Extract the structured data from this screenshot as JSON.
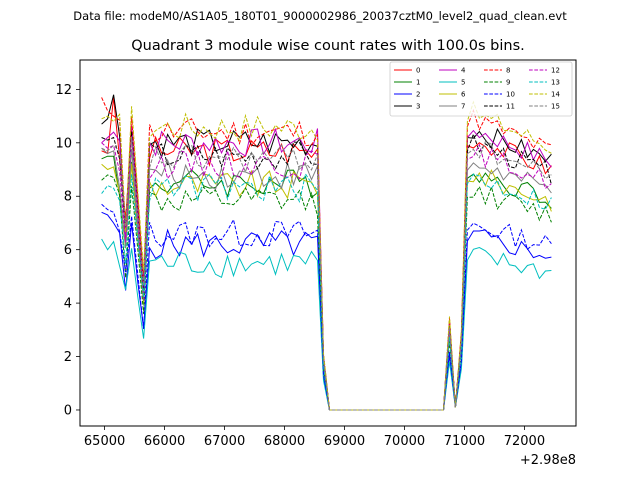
{
  "suptitle": "Data file: modeM0/AS1A05_180T01_9000002986_20037cztM0_level2_quad_clean.evt",
  "chart_data": {
    "type": "line",
    "title": "Quadrant 3 module wise count rates with 100.0s bins.",
    "xlabel": "",
    "ylabel": "",
    "x_offset_label": "+2.98e8",
    "x_unit_note": "x values are offsets from 2.98e8",
    "xlim": [
      64590,
      72860
    ],
    "ylim": [
      -0.6,
      13.1
    ],
    "xticks": [
      65000,
      66000,
      67000,
      68000,
      69000,
      70000,
      71000,
      72000
    ],
    "xtick_labels": [
      "65000",
      "66000",
      "67000",
      "68000",
      "69000",
      "70000",
      "71000",
      "72000"
    ],
    "yticks": [
      0,
      2,
      4,
      6,
      8,
      10,
      12
    ],
    "ytick_labels": [
      "0",
      "2",
      "4",
      "6",
      "8",
      "10",
      "12"
    ],
    "legend_position": "top-right",
    "x": [
      64950,
      65050,
      65150,
      65250,
      65350,
      65450,
      65550,
      65650,
      65750,
      65850,
      65950,
      66050,
      66150,
      66250,
      66350,
      66450,
      66550,
      66650,
      66750,
      66850,
      66950,
      67050,
      67150,
      67250,
      67350,
      67450,
      67550,
      67650,
      67750,
      67850,
      67950,
      68050,
      68150,
      68250,
      68350,
      68450,
      68550,
      68650,
      68750,
      68850,
      68950,
      69050,
      69150,
      69250,
      69350,
      69450,
      69550,
      69650,
      69750,
      69850,
      69950,
      70050,
      70150,
      70250,
      70350,
      70450,
      70550,
      70650,
      70750,
      70850,
      70950,
      71050,
      71150,
      71250,
      71350,
      71450,
      71550,
      71650,
      71750,
      71850,
      71950,
      72050,
      72150,
      72250,
      72350,
      72450
    ],
    "envelope_note": "Every series follows the same shape: 100-s bins, a 2-bin dip after 65250, ~0 counts between 68750 and 70550, then a spike at 70750.",
    "series": [
      {
        "name": "0",
        "color": "#ff0000",
        "style": "solid",
        "level": 9.7,
        "base": [
          9.7,
          9.6,
          11.7
        ]
      },
      {
        "name": "1",
        "color": "#008000",
        "style": "solid",
        "level": 8.5,
        "base": [
          9.4,
          9.5,
          9.5
        ]
      },
      {
        "name": "2",
        "color": "#0000ff",
        "style": "solid",
        "level": 6.2,
        "base": [
          7.4,
          7.3,
          7.0
        ]
      },
      {
        "name": "3",
        "color": "#000000",
        "style": "solid",
        "level": 10.0,
        "base": [
          10.7,
          10.9,
          11.8
        ]
      },
      {
        "name": "4",
        "color": "#bf00bf",
        "style": "solid",
        "level": 10.0,
        "base": [
          10.0,
          10.2,
          10.4
        ]
      },
      {
        "name": "5",
        "color": "#00bfbf",
        "style": "solid",
        "level": 5.5,
        "base": [
          6.4,
          6.0,
          6.3
        ]
      },
      {
        "name": "6",
        "color": "#bfbf00",
        "style": "solid",
        "level": 8.4,
        "base": [
          9.2,
          9.0,
          9.1
        ]
      },
      {
        "name": "7",
        "color": "#808080",
        "style": "solid",
        "level": 8.8,
        "base": [
          9.8,
          9.6,
          9.7
        ]
      },
      {
        "name": "8",
        "color": "#ff0000",
        "style": "dashed",
        "level": 10.4,
        "base": [
          11.7,
          11.2,
          11.0
        ]
      },
      {
        "name": "9",
        "color": "#008000",
        "style": "dashed",
        "level": 7.8,
        "base": [
          8.6,
          8.8,
          8.7
        ]
      },
      {
        "name": "10",
        "color": "#0000ff",
        "style": "dashed",
        "level": 6.6,
        "base": [
          7.7,
          7.5,
          7.4
        ]
      },
      {
        "name": "11",
        "color": "#000000",
        "style": "dashed",
        "level": 9.5,
        "base": [
          10.2,
          10.1,
          10.2
        ]
      },
      {
        "name": "12",
        "color": "#bf00bf",
        "style": "dashed",
        "level": 9.2,
        "base": [
          10.0,
          9.8,
          9.9
        ]
      },
      {
        "name": "13",
        "color": "#00bfbf",
        "style": "dashed",
        "level": 8.3,
        "base": [
          8.1,
          8.4,
          8.3
        ]
      },
      {
        "name": "14",
        "color": "#bfbf00",
        "style": "dashed",
        "level": 10.6,
        "base": [
          10.9,
          11.0,
          10.8
        ]
      },
      {
        "name": "15",
        "color": "#808080",
        "style": "dashed",
        "level": 9.4,
        "base": [
          9.8,
          9.7,
          9.9
        ]
      }
    ]
  }
}
